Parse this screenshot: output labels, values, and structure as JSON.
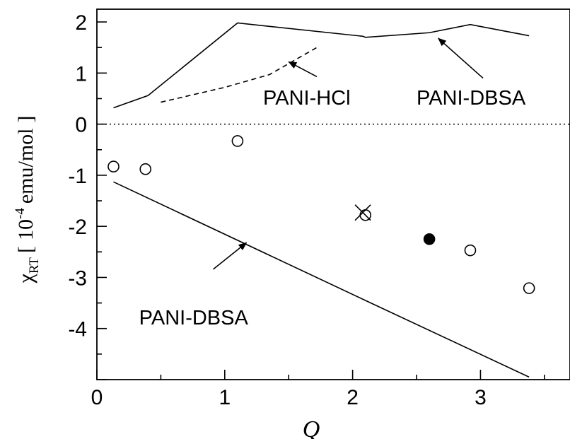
{
  "chart_data": {
    "type": "scatter",
    "xlabel": "Q",
    "ylabel": {
      "symbol": "χ",
      "subscript": "RT",
      "bracket_open": "[",
      "unit_base": "10",
      "unit_exp": "-4",
      "unit_rest": "emu/mol",
      "bracket_close": "]"
    },
    "xlim": [
      0,
      3.7
    ],
    "ylim": [
      -5,
      2.25
    ],
    "x_ticks": [
      "0",
      "1",
      "2",
      "3"
    ],
    "y_ticks": [
      "-4",
      "-3",
      "-2",
      "-1",
      "0",
      "1",
      "2"
    ],
    "grid": false,
    "legend": "none",
    "series": [
      {
        "style": "open-circle",
        "points": [
          [
            0.13,
            -0.83
          ],
          [
            0.38,
            -0.88
          ],
          [
            1.1,
            -0.33
          ],
          [
            2.1,
            -1.78
          ],
          [
            2.92,
            -2.47
          ],
          [
            3.38,
            -3.21
          ]
        ]
      },
      {
        "style": "filled-circle",
        "points": [
          [
            2.6,
            -2.25
          ]
        ]
      },
      {
        "style": "cross",
        "points": [
          [
            2.08,
            -1.73
          ]
        ]
      },
      {
        "style": "solid",
        "points": [
          [
            0.13,
            0.32
          ],
          [
            0.4,
            0.56
          ],
          [
            1.1,
            1.98
          ],
          [
            2.08,
            1.72
          ],
          [
            2.1,
            1.7
          ],
          [
            2.6,
            1.79
          ],
          [
            2.92,
            1.95
          ],
          [
            3.38,
            1.73
          ]
        ]
      },
      {
        "style": "dashed",
        "points": [
          [
            0.5,
            0.43
          ],
          [
            1.0,
            0.72
          ],
          [
            1.35,
            0.97
          ],
          [
            1.72,
            1.5
          ]
        ]
      },
      {
        "style": "solid",
        "points": [
          [
            0.13,
            -1.13
          ],
          [
            2.1,
            -3.45
          ],
          [
            3.38,
            -4.95
          ]
        ]
      },
      {
        "style": "dotted",
        "points": [
          [
            0,
            0
          ],
          [
            3.7,
            0
          ]
        ]
      }
    ],
    "annotations": [
      {
        "text": "PANI-HCl",
        "pos": [
          1.3,
          0.38
        ],
        "anchor": "start",
        "arrow_from": [
          1.72,
          0.93
        ],
        "arrow_to": [
          1.5,
          1.22
        ]
      },
      {
        "text": "PANI-DBSA",
        "pos": [
          2.5,
          0.38
        ],
        "anchor": "start",
        "arrow_from": [
          3.02,
          0.9
        ],
        "arrow_to": [
          2.67,
          1.68
        ]
      },
      {
        "text": "PANI-DBSA",
        "pos": [
          0.33,
          -3.92
        ],
        "anchor": "start",
        "arrow_from": [
          0.91,
          -2.84
        ],
        "arrow_to": [
          1.17,
          -2.32
        ]
      }
    ]
  }
}
